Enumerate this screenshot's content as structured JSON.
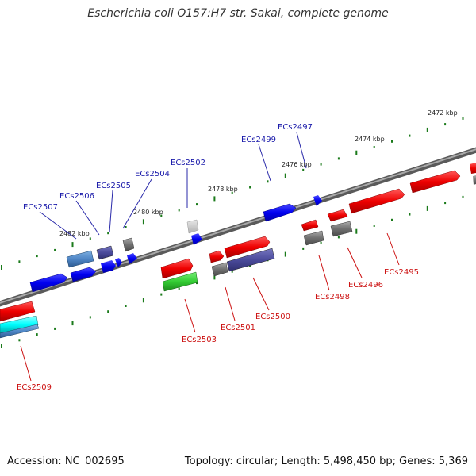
{
  "title": "Escherichia coli O157:H7 str. Sakai, complete genome",
  "footer": {
    "accession": "Accession: NC_002695",
    "summary": "Topology: circular; Length: 5,498,450 bp; Genes: 5,369"
  },
  "ticks": [
    "2472 kbp",
    "2474 kbp",
    "2476 kbp",
    "2478 kbp",
    "2480 kbp",
    "2482 kbp"
  ],
  "forward_labels": [
    "ECs2497",
    "ECs2499",
    "ECs2502",
    "ECs2504",
    "ECs2505",
    "ECs2506",
    "ECs2507"
  ],
  "reverse_labels": [
    "ECs2495",
    "ECs2496",
    "ECs2498",
    "ECs2500",
    "ECs2501",
    "ECs2503",
    "ECs2509"
  ],
  "colors": {
    "backbone": "#808080",
    "forward_gene": "#0000ff",
    "reverse_gene": "#ff0000",
    "pseudo_gene": "#777777",
    "cog_slate": "#4b4b9b",
    "cog_steel": "#4f86c6",
    "cog_green": "#33cc33",
    "cog_cyan": "#00ffff",
    "tick_mark": "#1a7a1a",
    "label_forward": "#1a1aaa",
    "label_reverse": "#cc1111"
  }
}
